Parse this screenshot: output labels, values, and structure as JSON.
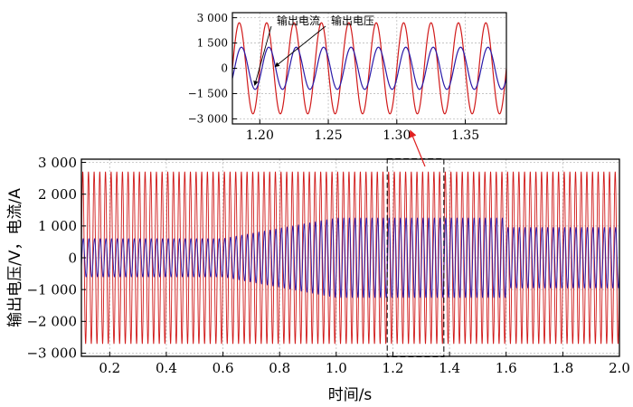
{
  "colors": {
    "voltage": "#d11a1a",
    "current": "#2a1aa8",
    "grid": "#bdbdbd",
    "arrow": "#e02020"
  },
  "chart_data": [
    {
      "type": "line",
      "panel": "main",
      "xlabel": "时间/s",
      "ylabel": "输出电压/V，电流/A",
      "xlim": [
        0.1,
        2.0
      ],
      "ylim": [
        -3100,
        3100
      ],
      "xticks": [
        0.2,
        0.4,
        0.6,
        0.8,
        1.0,
        1.2,
        1.4,
        1.6,
        1.8,
        2.0
      ],
      "xtick_labels": [
        "0.2",
        "0.4",
        "0.6",
        "0.8",
        "1.0",
        "1.2",
        "1.4",
        "1.6",
        "1.8",
        "2.0"
      ],
      "yticks": [
        3000,
        2000,
        1000,
        0,
        -1000,
        -2000,
        -3000
      ],
      "ytick_labels": [
        "3 000",
        "2 000",
        "1 000",
        "0",
        "−1 000",
        "−2 000",
        "−3 000"
      ],
      "grid": true,
      "frequency_hz": 50,
      "series": [
        {
          "key": "voltage",
          "color": "#d11a1a",
          "amplitude": 2700
        },
        {
          "key": "current",
          "color": "#2a1aa8",
          "amplitude_envelope": {
            "t": [
              0.1,
              0.6,
              1.0,
              1.6,
              1.601,
              2.0
            ],
            "a": [
              600,
              600,
              1250,
              1250,
              950,
              950
            ]
          }
        }
      ],
      "zoom_window": {
        "x": [
          1.18,
          1.38
        ],
        "y": [
          -3000,
          3000
        ]
      }
    },
    {
      "type": "line",
      "panel": "inset",
      "xlim": [
        1.18,
        1.38
      ],
      "ylim": [
        -3300,
        3300
      ],
      "xticks": [
        1.2,
        1.25,
        1.3,
        1.35
      ],
      "xtick_labels": [
        "1.20",
        "1.25",
        "1.30",
        "1.35"
      ],
      "yticks": [
        3000,
        1500,
        0,
        -1500,
        -3000
      ],
      "ytick_labels": [
        "3 000",
        "1 500",
        "0",
        "−1 500",
        "−3 000"
      ],
      "grid": true,
      "frequency_hz": 50,
      "series": [
        {
          "key": "voltage",
          "name": "输出电压",
          "color": "#d11a1a",
          "amplitude": 2700
        },
        {
          "key": "current",
          "name": "输出电流",
          "color": "#2a1aa8",
          "amplitude": 1250
        }
      ],
      "annotations": [
        {
          "text": "输出电流",
          "points_to": "current",
          "at_x": 1.195
        },
        {
          "text": "输出电压",
          "points_to": "voltage",
          "at_x": 1.21
        }
      ]
    }
  ]
}
